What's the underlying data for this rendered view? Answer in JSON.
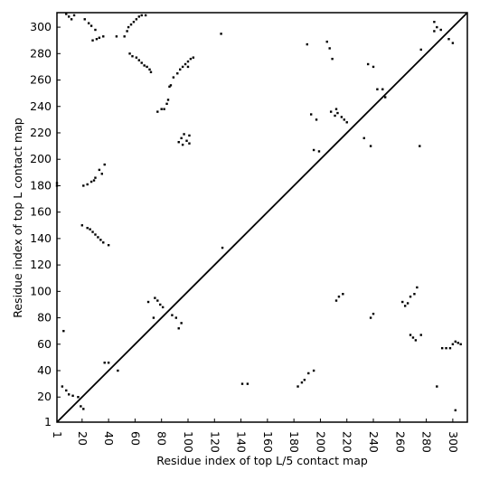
{
  "chart_data": {
    "type": "scatter",
    "xlabel": "Residue index of top L/5 contact map",
    "ylabel": "Residue index of top L contact map",
    "xlim": [
      1,
      311
    ],
    "ylim": [
      1,
      311
    ],
    "xticks": [
      1,
      20,
      40,
      60,
      80,
      100,
      120,
      140,
      160,
      180,
      200,
      220,
      240,
      260,
      280,
      300
    ],
    "yticks": [
      1,
      20,
      40,
      60,
      80,
      100,
      120,
      140,
      160,
      180,
      200,
      220,
      240,
      260,
      280,
      300
    ],
    "diagonal": true,
    "color": "#000000",
    "x": [
      8,
      10,
      12,
      14,
      22,
      25,
      27,
      30,
      28,
      31,
      33,
      36,
      46,
      52,
      54,
      55,
      57,
      59,
      61,
      63,
      65,
      68,
      56,
      58,
      61,
      63,
      65,
      67,
      69,
      71,
      72,
      86,
      87,
      89,
      92,
      94,
      96,
      98,
      100,
      102,
      104,
      100,
      82,
      84,
      85,
      80,
      77,
      93,
      95,
      97,
      99,
      101,
      96,
      101,
      37,
      33,
      35,
      30,
      29,
      27,
      24,
      21,
      1,
      1,
      20,
      24,
      26,
      28,
      30,
      32,
      34,
      36,
      40,
      70,
      75,
      77,
      79,
      81,
      74,
      88,
      91,
      95,
      93,
      6,
      5,
      8,
      10,
      13,
      17,
      19,
      21,
      37,
      40,
      47,
      125,
      126,
      190,
      193,
      197,
      195,
      199,
      205,
      207,
      209,
      208,
      211,
      213,
      216,
      218,
      220,
      212,
      233,
      238,
      236,
      240,
      243,
      247,
      249,
      275,
      276,
      286,
      288,
      291,
      286,
      297,
      300,
      141,
      145,
      183,
      186,
      188,
      191,
      195,
      212,
      214,
      217,
      238,
      240,
      262,
      264,
      266,
      268,
      271,
      273,
      268,
      270,
      272,
      276,
      288,
      292,
      295,
      298,
      300,
      302,
      304,
      306,
      302
    ],
    "values": [
      310,
      308,
      306,
      309,
      306,
      303,
      301,
      298,
      290,
      291,
      292,
      293,
      293,
      293,
      297,
      300,
      302,
      304,
      306,
      308,
      309,
      309,
      280,
      278,
      277,
      275,
      273,
      271,
      270,
      268,
      266,
      255,
      256,
      262,
      265,
      268,
      270,
      272,
      274,
      276,
      277,
      270,
      238,
      242,
      245,
      238,
      236,
      213,
      216,
      219,
      214,
      212,
      211,
      218,
      196,
      192,
      189,
      186,
      184,
      183,
      181,
      180,
      182,
      180,
      150,
      148,
      147,
      145,
      143,
      141,
      139,
      137,
      135,
      92,
      95,
      93,
      90,
      88,
      80,
      82,
      80,
      76,
      72,
      70,
      28,
      25,
      22,
      21,
      20,
      13,
      11,
      46,
      46,
      40,
      295,
      133,
      287,
      234,
      230,
      207,
      206,
      289,
      284,
      276,
      236,
      233,
      235,
      232,
      230,
      228,
      238,
      216,
      210,
      272,
      270,
      253,
      253,
      247,
      210,
      283,
      304,
      300,
      298,
      297,
      291,
      288,
      30,
      30,
      28,
      31,
      33,
      38,
      40,
      93,
      96,
      98,
      80,
      83,
      92,
      89,
      91,
      96,
      98,
      103,
      67,
      65,
      63,
      67,
      28,
      57,
      57,
      57,
      60,
      62,
      61,
      60,
      10
    ]
  }
}
